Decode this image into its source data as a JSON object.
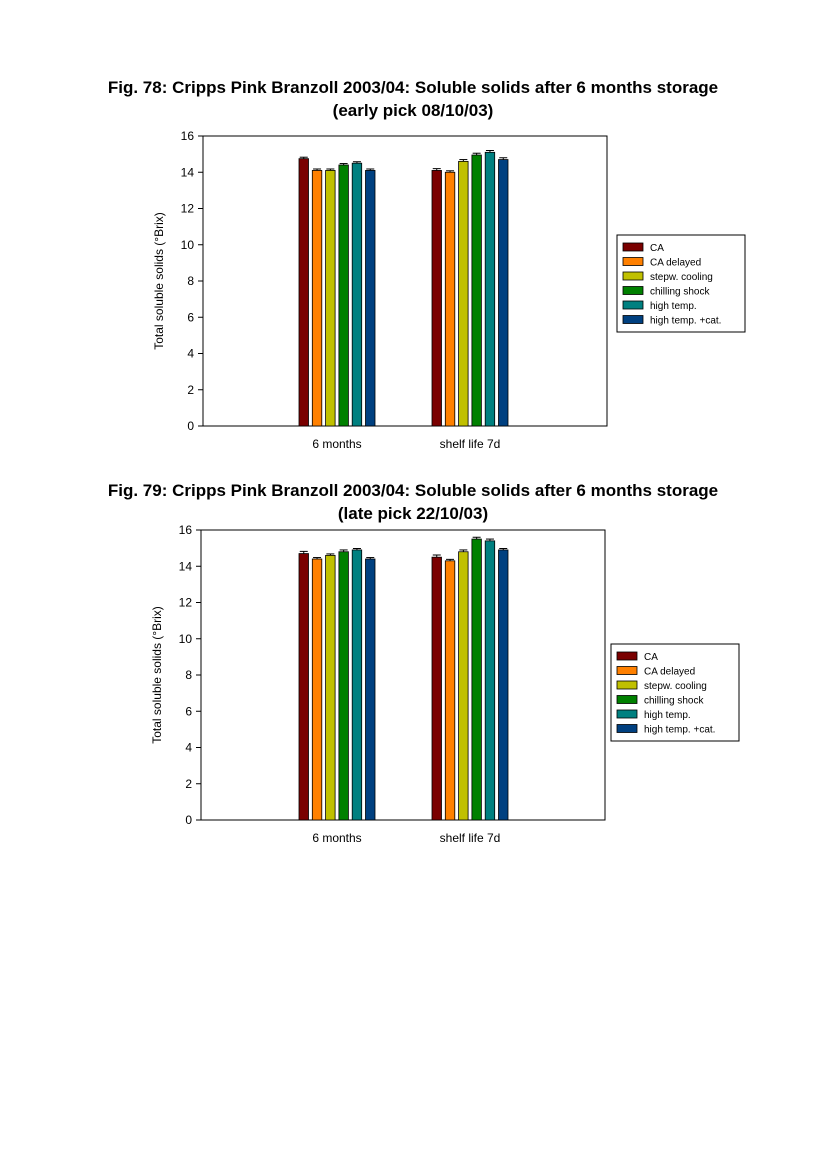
{
  "figures": [
    {
      "title_line1": "Fig. 78: Cripps Pink Branzoll 2003/04: Soluble solids after 6 months storage",
      "title_line2": "(early pick 08/10/03)"
    },
    {
      "title_line1": "Fig. 79: Cripps Pink Branzoll 2003/04: Soluble solids after 6 months storage",
      "title_line2": "(late pick 22/10/03)"
    }
  ],
  "chart_data": [
    {
      "type": "bar",
      "title": "Fig. 78: Cripps Pink Branzoll 2003/04: Soluble solids after 6 months storage (early pick 08/10/03)",
      "ylabel": "Total soluble solids (°Brix)",
      "xlabel": "",
      "ylim": [
        0,
        16
      ],
      "yticks": [
        0,
        2,
        4,
        6,
        8,
        10,
        12,
        14,
        16
      ],
      "categories": [
        "6 months",
        "shelf life 7d"
      ],
      "legend_position": "right",
      "grid": false,
      "series": [
        {
          "name": "CA",
          "color": "#7a0000",
          "values": [
            14.75,
            14.1
          ],
          "errors": [
            0.08,
            0.1
          ]
        },
        {
          "name": "CA delayed",
          "color": "#ff8000",
          "values": [
            14.1,
            14.0
          ],
          "errors": [
            0.08,
            0.08
          ]
        },
        {
          "name": "stepw. cooling",
          "color": "#c0c000",
          "values": [
            14.1,
            14.6
          ],
          "errors": [
            0.08,
            0.1
          ]
        },
        {
          "name": "chilling shock",
          "color": "#008000",
          "values": [
            14.4,
            14.95
          ],
          "errors": [
            0.08,
            0.1
          ]
        },
        {
          "name": "high temp.",
          "color": "#008080",
          "values": [
            14.5,
            15.1
          ],
          "errors": [
            0.08,
            0.1
          ]
        },
        {
          "name": "high temp. +cat.",
          "color": "#004080",
          "values": [
            14.1,
            14.7
          ],
          "errors": [
            0.08,
            0.1
          ]
        }
      ]
    },
    {
      "type": "bar",
      "title": "Fig. 79: Cripps Pink Branzoll 2003/04: Soluble solids after 6 months storage (late pick 22/10/03)",
      "ylabel": "Total soluble solids (°Brix)",
      "xlabel": "",
      "ylim": [
        0,
        16
      ],
      "yticks": [
        0,
        2,
        4,
        6,
        8,
        10,
        12,
        14,
        16
      ],
      "categories": [
        "6 months",
        "shelf life 7d"
      ],
      "legend_position": "right",
      "grid": false,
      "series": [
        {
          "name": "CA",
          "color": "#7a0000",
          "values": [
            14.7,
            14.5
          ],
          "errors": [
            0.12,
            0.12
          ]
        },
        {
          "name": "CA delayed",
          "color": "#ff8000",
          "values": [
            14.4,
            14.3
          ],
          "errors": [
            0.08,
            0.08
          ]
        },
        {
          "name": "stepw. cooling",
          "color": "#c0c000",
          "values": [
            14.6,
            14.8
          ],
          "errors": [
            0.08,
            0.1
          ]
        },
        {
          "name": "chilling shock",
          "color": "#008000",
          "values": [
            14.8,
            15.5
          ],
          "errors": [
            0.1,
            0.1
          ]
        },
        {
          "name": "high temp.",
          "color": "#008080",
          "values": [
            14.9,
            15.4
          ],
          "errors": [
            0.08,
            0.1
          ]
        },
        {
          "name": "high temp. +cat.",
          "color": "#004080",
          "values": [
            14.4,
            14.9
          ],
          "errors": [
            0.08,
            0.08
          ]
        }
      ]
    }
  ]
}
